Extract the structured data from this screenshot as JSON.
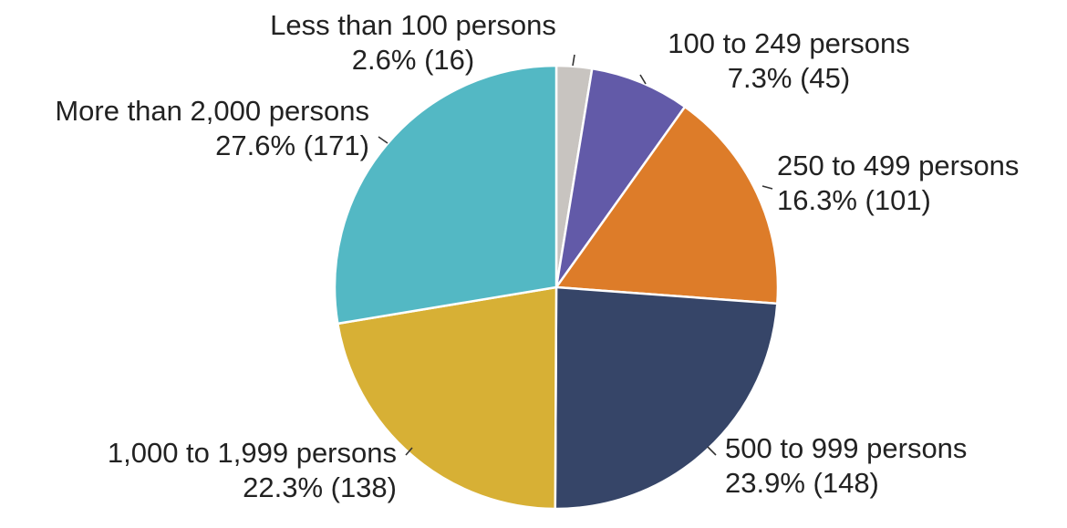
{
  "chart_data": {
    "type": "pie",
    "title": "",
    "slices": [
      {
        "label": "Less than 100 persons",
        "percent_text": "2.6% (16)",
        "value": 16,
        "color": "#c8c4c0"
      },
      {
        "label": "100 to 249 persons",
        "percent_text": "7.3% (45)",
        "value": 45,
        "color": "#625aa8"
      },
      {
        "label": "250 to 499 persons",
        "percent_text": "16.3% (101)",
        "value": 101,
        "color": "#dd7c29"
      },
      {
        "label": "500 to 999 persons",
        "percent_text": "23.9% (148)",
        "value": 148,
        "color": "#364568"
      },
      {
        "label": "1,000 to 1,999 persons",
        "percent_text": "22.3% (138)",
        "value": 138,
        "color": "#d7b035"
      },
      {
        "label": "More than 2,000 persons",
        "percent_text": "27.6% (171)",
        "value": 171,
        "color": "#53b8c4"
      }
    ],
    "start_angle": "12 o'clock",
    "direction": "clockwise",
    "legend": "none (data labels beside slices)"
  }
}
